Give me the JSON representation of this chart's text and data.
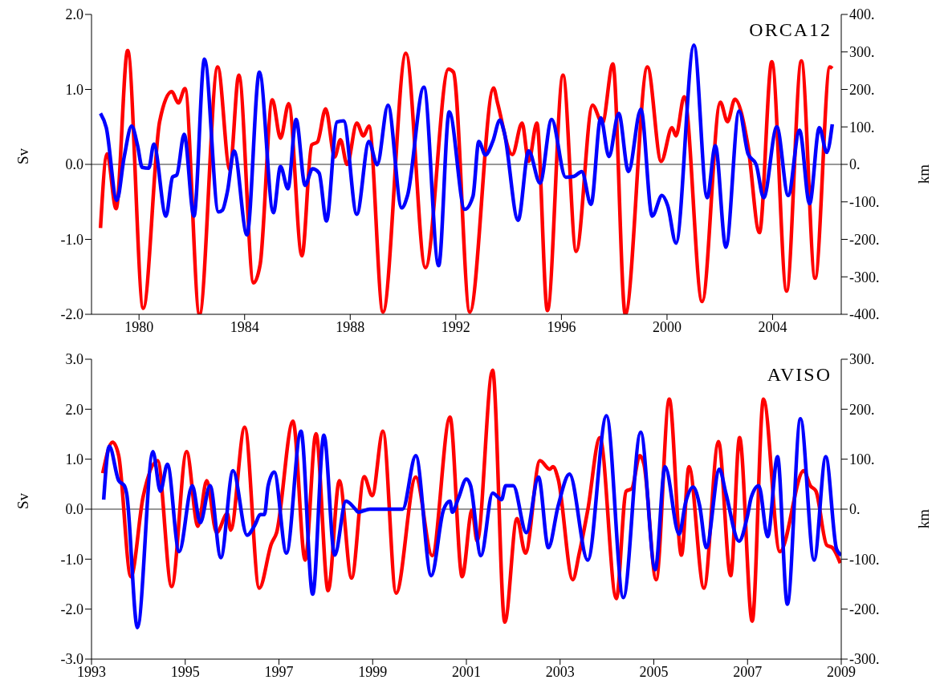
{
  "chart_data": [
    {
      "type": "line",
      "ylabel": "Sv",
      "y2label": "km",
      "annotations": [
        "ORCA12"
      ],
      "xlim": [
        1978.2,
        2006.6
      ],
      "xticks": [
        1980,
        1984,
        1988,
        1992,
        1996,
        2000,
        2004
      ],
      "ylim": [
        -2,
        2
      ],
      "yticks": [
        {
          "value": -2,
          "label": "-2.0"
        },
        {
          "value": -1,
          "label": "-1.0"
        },
        {
          "value": 0,
          "label": "0.0"
        },
        {
          "value": 1,
          "label": "1.0"
        },
        {
          "value": 2,
          "label": "2.0"
        }
      ],
      "y2lim": [
        -400,
        400
      ],
      "y2ticks": [
        {
          "value": -400,
          "label": "-400."
        },
        {
          "value": -300,
          "label": "-300."
        },
        {
          "value": -200,
          "label": "-200."
        },
        {
          "value": -100,
          "label": "-100."
        },
        {
          "value": 0,
          "label": "0."
        },
        {
          "value": 100,
          "label": "100."
        },
        {
          "value": 200,
          "label": "200."
        },
        {
          "value": 300,
          "label": "300."
        },
        {
          "value": 400,
          "label": "400."
        }
      ],
      "marker": "none",
      "line_style": "solid",
      "ref_lines": [
        {
          "axis": "y",
          "value": 0
        }
      ],
      "series": [
        {
          "color": "#ff0000",
          "x": [
            1978.54,
            1978.79,
            1979.13,
            1979.57,
            1980.16,
            1980.78,
            1981.24,
            1981.49,
            1981.74,
            1982.29,
            1982.98,
            1983.44,
            1983.78,
            1984.34,
            1984.59,
            1985.05,
            1985.36,
            1985.67,
            1986.17,
            1986.54,
            1986.76,
            1987.07,
            1987.41,
            1987.63,
            1987.88,
            1988.25,
            1988.5,
            1988.71,
            1989.24,
            1990.11,
            1990.85,
            1991.72,
            1991.91,
            1992.53,
            1993.43,
            1993.58,
            1994.14,
            1994.51,
            1994.76,
            1995.07,
            1995.47,
            1996.06,
            1996.56,
            1997.18,
            1997.55,
            1997.95,
            1998.42,
            1999.26,
            1999.78,
            2000.19,
            2000.34,
            2000.65,
            2001.33,
            2002.02,
            2002.29,
            2002.57,
            2003.07,
            2003.5,
            2003.97,
            2004.53,
            2005.09,
            2005.61,
            2006.17,
            2006.26
          ],
          "values": [
            -0.85,
            0.14,
            -0.59,
            1.52,
            -1.92,
            0.57,
            0.97,
            0.82,
            1.01,
            -2.0,
            1.3,
            -0.07,
            1.19,
            -1.58,
            -1.33,
            0.86,
            0.35,
            0.81,
            -1.22,
            0.26,
            0.3,
            0.74,
            0.1,
            0.33,
            0.0,
            0.55,
            0.38,
            0.51,
            -1.97,
            1.48,
            -1.38,
            1.27,
            1.23,
            -1.97,
            1.02,
            0.82,
            0.13,
            0.55,
            0.04,
            0.55,
            -1.95,
            1.19,
            -1.16,
            0.79,
            0.55,
            1.34,
            -2.0,
            1.3,
            0.04,
            0.49,
            0.38,
            0.9,
            -1.83,
            0.83,
            0.57,
            0.87,
            0.24,
            -0.91,
            1.37,
            -1.69,
            1.38,
            -1.52,
            1.3,
            1.28
          ]
        },
        {
          "color": "#0000ff",
          "axis": "y2",
          "x": [
            1978.54,
            1978.76,
            1979.16,
            1979.44,
            1979.72,
            1979.94,
            1980.12,
            1980.37,
            1980.56,
            1981.02,
            1981.27,
            1981.43,
            1981.71,
            1982.08,
            1982.48,
            1983.01,
            1983.16,
            1983.35,
            1983.6,
            1984.09,
            1984.56,
            1985.09,
            1985.36,
            1985.64,
            1985.95,
            1986.29,
            1986.57,
            1986.82,
            1987.1,
            1987.5,
            1987.75,
            1988.25,
            1988.71,
            1989.02,
            1989.43,
            1989.95,
            1990.17,
            1990.79,
            1991.35,
            1991.75,
            1992.34,
            1992.65,
            1992.87,
            1993.12,
            1993.4,
            1993.67,
            1993.83,
            1994.36,
            1994.76,
            1995.19,
            1995.63,
            1996.16,
            1996.47,
            1996.77,
            1997.12,
            1997.49,
            1997.8,
            1998.17,
            1998.54,
            1999.01,
            1999.44,
            1999.81,
            2000.03,
            2000.34,
            2001.02,
            2001.52,
            2001.83,
            2002.23,
            2002.73,
            2003.07,
            2003.38,
            2003.66,
            2004.16,
            2004.59,
            2005.02,
            2005.4,
            2005.77,
            2006.05,
            2006.26
          ],
          "values": [
            136,
            98,
            -96,
            21,
            102,
            52,
            -8,
            -10,
            54,
            -138,
            -34,
            -28,
            80,
            -138,
            281,
            -127,
            -122,
            -72,
            36,
            -188,
            246,
            -129,
            -6,
            -65,
            120,
            -56,
            -12,
            -23,
            -151,
            113,
            116,
            -133,
            61,
            -1,
            158,
            -116,
            -83,
            206,
            -270,
            140,
            -120,
            -85,
            61,
            25,
            61,
            118,
            87,
            -149,
            36,
            -50,
            120,
            -34,
            -32,
            -19,
            -107,
            124,
            21,
            136,
            -19,
            147,
            -138,
            -83,
            -111,
            -210,
            318,
            -89,
            50,
            -221,
            142,
            28,
            -1,
            -89,
            100,
            -83,
            91,
            -105,
            98,
            32,
            107
          ]
        }
      ]
    },
    {
      "type": "line",
      "ylabel": "Sv",
      "y2label": "km",
      "annotations": [
        "AVISO"
      ],
      "xlim": [
        1993,
        2009
      ],
      "xticks": [
        1993,
        1995,
        1997,
        1999,
        2001,
        2003,
        2005,
        2007,
        2009
      ],
      "ylim": [
        -3,
        3
      ],
      "yticks": [
        {
          "value": -3,
          "label": "-3.0"
        },
        {
          "value": -2,
          "label": "-2.0"
        },
        {
          "value": -1,
          "label": "-1.0"
        },
        {
          "value": 0,
          "label": "0.0"
        },
        {
          "value": 1,
          "label": "1.0"
        },
        {
          "value": 2,
          "label": "2.0"
        },
        {
          "value": 3,
          "label": "3.0"
        }
      ],
      "y2lim": [
        -300,
        300
      ],
      "y2ticks": [
        {
          "value": -300,
          "label": "-300."
        },
        {
          "value": -200,
          "label": "-200."
        },
        {
          "value": -100,
          "label": "-100."
        },
        {
          "value": 0,
          "label": "0."
        },
        {
          "value": 100,
          "label": "100."
        },
        {
          "value": 200,
          "label": "200."
        },
        {
          "value": 300,
          "label": "300."
        }
      ],
      "marker": "none",
      "line_style": "solid",
      "ref_lines": [
        {
          "axis": "y",
          "value": 0
        }
      ],
      "series": [
        {
          "color": "#ff0000",
          "x": [
            1993.24,
            1993.45,
            1993.58,
            1993.84,
            1994.1,
            1994.41,
            1994.71,
            1995.03,
            1995.27,
            1995.46,
            1995.67,
            1995.9,
            1995.97,
            1996.27,
            1996.58,
            1996.84,
            1996.95,
            1997.3,
            1997.56,
            1997.79,
            1998.05,
            1998.29,
            1998.55,
            1998.82,
            1998.99,
            1999.22,
            1999.5,
            1999.92,
            2000.27,
            2000.65,
            2000.91,
            2001.12,
            2001.23,
            2001.56,
            2001.82,
            2002.08,
            2002.26,
            2002.57,
            2002.78,
            2002.85,
            2002.96,
            2003.27,
            2003.41,
            2003.59,
            2003.85,
            2004.2,
            2004.41,
            2004.53,
            2004.7,
            2004.79,
            2005.05,
            2005.33,
            2005.59,
            2005.75,
            2006.07,
            2006.38,
            2006.64,
            2006.83,
            2007.1,
            2007.34,
            2007.69,
            2008.2,
            2008.34,
            2008.46,
            2008.69,
            2008.81,
            2008.98
          ],
          "values": [
            0.72,
            1.34,
            1.07,
            -1.35,
            0.24,
            0.97,
            -1.55,
            1.15,
            -0.34,
            0.57,
            -0.47,
            -0.09,
            -0.42,
            1.64,
            -1.58,
            -0.69,
            -0.47,
            1.76,
            -1.02,
            1.51,
            -1.63,
            0.57,
            -1.38,
            0.65,
            0.27,
            1.56,
            -1.68,
            0.64,
            -0.93,
            1.84,
            -1.35,
            -0.02,
            -0.64,
            2.78,
            -2.26,
            -0.19,
            -0.88,
            0.97,
            0.8,
            0.85,
            0.6,
            -1.41,
            -0.88,
            -0.02,
            1.43,
            -1.79,
            0.36,
            0.41,
            1.07,
            0.9,
            -1.41,
            2.2,
            -0.92,
            0.85,
            -1.58,
            1.35,
            -1.33,
            1.43,
            -2.24,
            2.2,
            -0.85,
            0.77,
            0.47,
            0.36,
            -0.72,
            -0.77,
            -1.08
          ]
        },
        {
          "color": "#0000ff",
          "axis": "y2",
          "x": [
            1993.26,
            1993.38,
            1993.58,
            1993.7,
            1993.75,
            1993.98,
            1994.31,
            1994.47,
            1994.62,
            1994.87,
            1995.15,
            1995.32,
            1995.53,
            1995.76,
            1996.02,
            1996.32,
            1996.49,
            1996.6,
            1996.69,
            1996.77,
            1996.9,
            1997.16,
            1997.47,
            1997.72,
            1997.96,
            1998.19,
            1998.43,
            1998.64,
            1998.69,
            1998.94,
            1999.64,
            1999.92,
            2000.25,
            2000.51,
            2000.65,
            2000.7,
            2000.83,
            2001.0,
            2001.09,
            2001.31,
            2001.56,
            2001.75,
            2001.84,
            2002.0,
            2002.28,
            2002.54,
            2002.75,
            2002.96,
            2003.2,
            2003.59,
            2003.99,
            2004.35,
            2004.72,
            2005.03,
            2005.24,
            2005.54,
            2005.68,
            2005.84,
            2005.98,
            2006.12,
            2006.4,
            2006.54,
            2006.82,
            2006.99,
            2007.08,
            2007.24,
            2007.43,
            2007.64,
            2007.85,
            2008.13,
            2008.42,
            2008.67,
            2008.9,
            2009.0
          ],
          "values": [
            19,
            126,
            57,
            47,
            31,
            -237,
            115,
            36,
            90,
            -85,
            47,
            -27,
            47,
            -97,
            77,
            -52,
            -31,
            -11,
            -11,
            47,
            74,
            -88,
            156,
            -170,
            148,
            -92,
            16,
            -1,
            -6,
            0,
            0,
            107,
            -133,
            -2,
            16,
            -6,
            22,
            60,
            47,
            -93,
            32,
            19,
            47,
            47,
            -47,
            64,
            -77,
            7,
            70,
            -102,
            187,
            -177,
            154,
            -121,
            85,
            -50,
            14,
            44,
            6,
            -77,
            80,
            31,
            -64,
            -17,
            24,
            47,
            -55,
            105,
            -190,
            181,
            -102,
            105,
            -80,
            -92
          ]
        }
      ]
    }
  ]
}
